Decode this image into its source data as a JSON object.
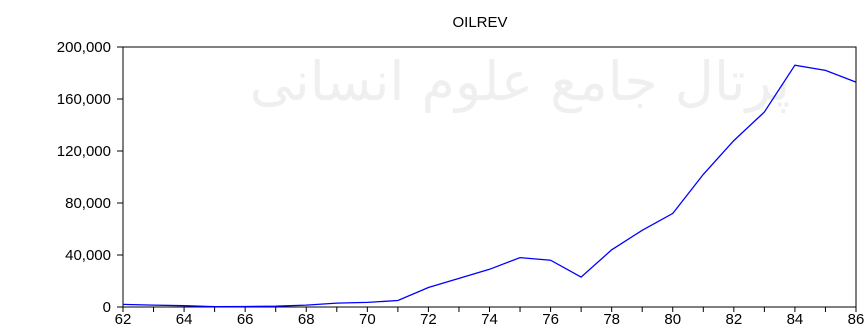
{
  "watermark_text": "پرتال جامع علوم انسانی",
  "chart_data": {
    "type": "line",
    "title": "OILREV",
    "xlabel": "",
    "ylabel": "",
    "x": [
      62,
      63,
      64,
      65,
      66,
      67,
      68,
      69,
      70,
      71,
      72,
      73,
      74,
      75,
      76,
      77,
      78,
      79,
      80,
      81,
      82,
      83,
      84,
      85,
      86
    ],
    "x_tick_labels": [
      "62",
      "64",
      "66",
      "68",
      "70",
      "72",
      "74",
      "76",
      "78",
      "80",
      "82",
      "84",
      "86"
    ],
    "xlim": [
      62,
      86
    ],
    "ylim": [
      0,
      200000
    ],
    "y_tick_values": [
      0,
      40000,
      80000,
      120000,
      160000,
      200000
    ],
    "y_tick_labels": [
      "0",
      "40,000",
      "80,000",
      "120,000",
      "160,000",
      "200,000"
    ],
    "series": [
      {
        "values": [
          2000,
          1500,
          1000,
          300,
          400,
          600,
          1500,
          3000,
          3500,
          5000,
          15000,
          22000,
          29000,
          38000,
          36000,
          23000,
          44000,
          59000,
          72000,
          102000,
          128000,
          150000,
          186000,
          182000,
          173000
        ],
        "color": "#0000ff"
      }
    ],
    "grid": false,
    "legend": "none"
  }
}
